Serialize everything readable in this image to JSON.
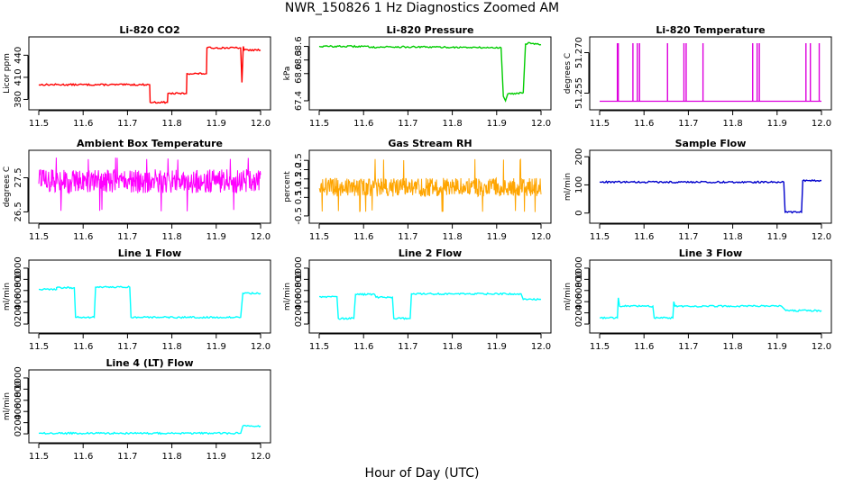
{
  "page": {
    "title": "NWR_150826  1 Hz Diagnostics Zoomed AM",
    "xlabel": "Hour of Day (UTC)"
  },
  "chart_data": [
    {
      "id": "co2",
      "type": "line",
      "title": "Li-820 CO2",
      "ylabel": "Licor ppm",
      "color": "#ff0000",
      "xlim": [
        11.5,
        12.0
      ],
      "ylim": [
        372,
        460
      ],
      "xticks": [
        "11.5",
        "11.6",
        "11.7",
        "11.8",
        "11.9",
        "12.0"
      ],
      "yticks": [
        {
          "v": 380,
          "label": "380"
        },
        {
          "v": 410,
          "label": "410"
        },
        {
          "v": 440,
          "label": "440"
        }
      ],
      "series": [
        {
          "name": "CO2",
          "points": [
            [
              11.5,
              400
            ],
            [
              11.75,
              400
            ],
            [
              11.751,
              376
            ],
            [
              11.79,
              376
            ],
            [
              11.791,
              388
            ],
            [
              11.833,
              388
            ],
            [
              11.834,
              415
            ],
            [
              11.878,
              415
            ],
            [
              11.879,
              450
            ],
            [
              11.955,
              450
            ],
            [
              11.958,
              403
            ],
            [
              11.961,
              452
            ],
            [
              11.963,
              447
            ],
            [
              12.0,
              447
            ]
          ]
        }
      ]
    },
    {
      "id": "pressure",
      "type": "line",
      "title": "Li-820 Pressure",
      "ylabel": "kPa",
      "color": "#00cc00",
      "xlim": [
        11.5,
        12.0
      ],
      "ylim": [
        67.3,
        68.73
      ],
      "xticks": [
        "11.5",
        "11.6",
        "11.7",
        "11.8",
        "11.9",
        "12.0"
      ],
      "yticks": [
        {
          "v": 67.4,
          "label": "67.4"
        },
        {
          "v": 68.0,
          "label": "68.0"
        },
        {
          "v": 68.3,
          "label": "68.3"
        },
        {
          "v": 68.6,
          "label": "68.6"
        }
      ],
      "series": [
        {
          "name": "Pressure",
          "points": [
            [
              11.5,
              68.6
            ],
            [
              11.6,
              68.6
            ],
            [
              11.63,
              68.58
            ],
            [
              11.65,
              68.59
            ],
            [
              11.8,
              68.58
            ],
            [
              11.91,
              68.57
            ],
            [
              11.915,
              67.5
            ],
            [
              11.92,
              67.4
            ],
            [
              11.925,
              67.55
            ],
            [
              11.96,
              67.58
            ],
            [
              11.965,
              68.65
            ],
            [
              11.975,
              68.68
            ],
            [
              12.0,
              68.64
            ]
          ]
        }
      ]
    },
    {
      "id": "temperature",
      "type": "line",
      "title": "Li-820 Temperature",
      "ylabel": "degrees C",
      "color": "#dd00dd",
      "xlim": [
        11.5,
        12.0
      ],
      "ylim": [
        51.2505,
        51.2745
      ],
      "xticks": [
        "11.5",
        "11.6",
        "11.7",
        "11.8",
        "11.9",
        "12.0"
      ],
      "yticks": [
        {
          "v": 51.255,
          "label": "51.255"
        },
        {
          "v": 51.27,
          "label": "51.270"
        }
      ],
      "series": [
        {
          "name": "Temperature",
          "baseline": 51.252,
          "spike_top": 51.2735,
          "spikes": [
            11.54,
            11.542,
            11.575,
            11.585,
            11.59,
            11.653,
            11.69,
            11.695,
            11.733,
            11.845,
            11.855,
            11.86,
            11.965,
            11.975,
            11.995
          ]
        }
      ]
    },
    {
      "id": "ambient",
      "type": "line",
      "title": "Ambient Box Temperature",
      "ylabel": "degrees C",
      "color": "#ff00ff",
      "xlim": [
        11.5,
        12.0
      ],
      "ylim": [
        26.3,
        28.2
      ],
      "xticks": [
        "11.5",
        "11.6",
        "11.7",
        "11.8",
        "11.9",
        "12.0"
      ],
      "yticks": [
        {
          "v": 26.5,
          "label": "26.5"
        },
        {
          "v": 27.5,
          "label": "27.5"
        }
      ],
      "series": [
        {
          "name": "Ambient",
          "noise": {
            "center": 27.4,
            "amplitude": 0.35,
            "min": 26.5,
            "max": 28.1
          }
        }
      ]
    },
    {
      "id": "rh",
      "type": "line",
      "title": "Gas Stream RH",
      "ylabel": "percent",
      "color": "#ffa500",
      "xlim": [
        11.5,
        12.0
      ],
      "ylim": [
        -0.65,
        2.85
      ],
      "xticks": [
        "11.5",
        "11.6",
        "11.7",
        "11.8",
        "11.9",
        "12.0"
      ],
      "yticks": [
        {
          "v": -0.5,
          "label": "-0.5"
        },
        {
          "v": 0.5,
          "label": "0.5"
        },
        {
          "v": 1.0,
          "label": "1.0"
        },
        {
          "v": 1.5,
          "label": "1.5"
        },
        {
          "v": 2.0,
          "label": "2.0"
        },
        {
          "v": 2.5,
          "label": "2.5"
        }
      ],
      "series": [
        {
          "name": "RH",
          "noise": {
            "center": 1.05,
            "amplitude": 0.5,
            "min": -0.3,
            "max": 2.6
          }
        }
      ]
    },
    {
      "id": "sample_flow",
      "type": "line",
      "title": "Sample Flow",
      "ylabel": "ml/min",
      "color": "#0000cc",
      "xlim": [
        11.5,
        12.0
      ],
      "ylim": [
        -20,
        210
      ],
      "xticks": [
        "11.5",
        "11.6",
        "11.7",
        "11.8",
        "11.9",
        "12.0"
      ],
      "yticks": [
        {
          "v": 0,
          "label": "0"
        },
        {
          "v": 100,
          "label": "100"
        },
        {
          "v": 200,
          "label": "200"
        }
      ],
      "series": [
        {
          "name": "Sample Flow",
          "points": [
            [
              11.5,
              110
            ],
            [
              11.915,
              110
            ],
            [
              11.918,
              3
            ],
            [
              11.955,
              3
            ],
            [
              11.958,
              115
            ],
            [
              12.0,
              115
            ]
          ]
        }
      ]
    },
    {
      "id": "line1",
      "type": "line",
      "title": "Line 1 Flow",
      "ylabel": "ml/min",
      "color": "#00ffff",
      "xlim": [
        11.5,
        12.0
      ],
      "ylim": [
        -80,
        1080
      ],
      "xticks": [
        "11.5",
        "11.6",
        "11.7",
        "11.8",
        "11.9",
        "12.0"
      ],
      "yticks": [
        {
          "v": 0,
          "label": "0"
        },
        {
          "v": 200,
          "label": "200"
        },
        {
          "v": 400,
          "label": "400"
        },
        {
          "v": 600,
          "label": "600"
        },
        {
          "v": 800,
          "label": "800"
        },
        {
          "v": 1000,
          "label": "1000"
        }
      ],
      "series": [
        {
          "name": "Line 1",
          "points": [
            [
              11.5,
              620
            ],
            [
              11.54,
              620
            ],
            [
              11.54,
              650
            ],
            [
              11.58,
              650
            ],
            [
              11.583,
              120
            ],
            [
              11.625,
              120
            ],
            [
              11.628,
              660
            ],
            [
              11.705,
              660
            ],
            [
              11.708,
              120
            ],
            [
              11.955,
              120
            ],
            [
              11.96,
              550
            ],
            [
              12.0,
              550
            ]
          ]
        }
      ]
    },
    {
      "id": "line2",
      "type": "line",
      "title": "Line 2 Flow",
      "ylabel": "ml/min",
      "color": "#00ffff",
      "xlim": [
        11.5,
        12.0
      ],
      "ylim": [
        -80,
        1080
      ],
      "xticks": [
        "11.5",
        "11.6",
        "11.7",
        "11.8",
        "11.9",
        "12.0"
      ],
      "yticks": [
        {
          "v": 0,
          "label": "0"
        },
        {
          "v": 200,
          "label": "200"
        },
        {
          "v": 400,
          "label": "400"
        },
        {
          "v": 600,
          "label": "600"
        },
        {
          "v": 800,
          "label": "800"
        },
        {
          "v": 1000,
          "label": "1000"
        }
      ],
      "series": [
        {
          "name": "Line 2",
          "points": [
            [
              11.5,
              490
            ],
            [
              11.54,
              490
            ],
            [
              11.543,
              100
            ],
            [
              11.578,
              100
            ],
            [
              11.582,
              530
            ],
            [
              11.625,
              530
            ],
            [
              11.628,
              480
            ],
            [
              11.665,
              480
            ],
            [
              11.668,
              100
            ],
            [
              11.705,
              100
            ],
            [
              11.708,
              540
            ],
            [
              11.955,
              540
            ],
            [
              11.96,
              440
            ],
            [
              12.0,
              440
            ]
          ]
        }
      ]
    },
    {
      "id": "line3",
      "type": "line",
      "title": "Line 3 Flow",
      "ylabel": "ml/min",
      "color": "#00ffff",
      "xlim": [
        11.5,
        12.0
      ],
      "ylim": [
        -80,
        1080
      ],
      "xticks": [
        "11.5",
        "11.6",
        "11.7",
        "11.8",
        "11.9",
        "12.0"
      ],
      "yticks": [
        {
          "v": 0,
          "label": "0"
        },
        {
          "v": 200,
          "label": "200"
        },
        {
          "v": 400,
          "label": "400"
        },
        {
          "v": 600,
          "label": "600"
        },
        {
          "v": 800,
          "label": "800"
        },
        {
          "v": 1000,
          "label": "1000"
        }
      ],
      "series": [
        {
          "name": "Line 3",
          "points": [
            [
              11.5,
              110
            ],
            [
              11.54,
              110
            ],
            [
              11.542,
              470
            ],
            [
              11.545,
              320
            ],
            [
              11.62,
              320
            ],
            [
              11.623,
              110
            ],
            [
              11.665,
              110
            ],
            [
              11.667,
              400
            ],
            [
              11.67,
              320
            ],
            [
              11.91,
              320
            ],
            [
              11.915,
              280
            ],
            [
              11.92,
              240
            ],
            [
              12.0,
              240
            ]
          ]
        }
      ]
    },
    {
      "id": "line4",
      "type": "line",
      "title": "Line 4 (LT) Flow",
      "ylabel": "ml/min",
      "color": "#00ffff",
      "xlim": [
        11.5,
        12.0
      ],
      "ylim": [
        -80,
        1080
      ],
      "xticks": [
        "11.5",
        "11.6",
        "11.7",
        "11.8",
        "11.9",
        "12.0"
      ],
      "yticks": [
        {
          "v": 0,
          "label": "0"
        },
        {
          "v": 200,
          "label": "200"
        },
        {
          "v": 400,
          "label": "400"
        },
        {
          "v": 600,
          "label": "600"
        },
        {
          "v": 800,
          "label": "800"
        },
        {
          "v": 1000,
          "label": "1000"
        }
      ],
      "series": [
        {
          "name": "Line 4",
          "points": [
            [
              11.5,
              10
            ],
            [
              11.955,
              10
            ],
            [
              11.96,
              140
            ],
            [
              12.0,
              140
            ]
          ]
        }
      ]
    }
  ]
}
